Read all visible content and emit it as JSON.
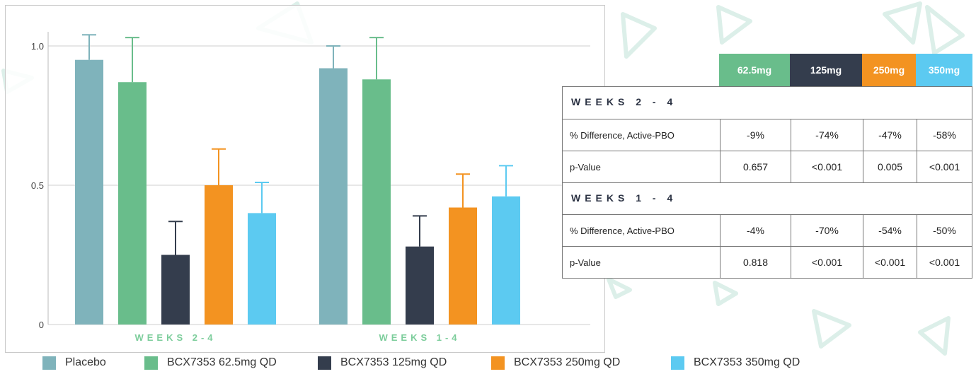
{
  "colors": {
    "placebo": "#7fb3bb",
    "dose_62_5": "#69bd8b",
    "dose_125": "#343d4d",
    "dose_250": "#f39321",
    "dose_350": "#5ccaf1",
    "grid": "#cfcfcf",
    "group_label": "#7ccd9b"
  },
  "chart_data": {
    "type": "bar",
    "categories": [
      "WEEKS 2-4",
      "WEEKS 1-4"
    ],
    "series": [
      {
        "name": "Placebo",
        "values": [
          0.95,
          0.92
        ],
        "error_upper": [
          1.04,
          1.0
        ]
      },
      {
        "name": "BCX7353 62.5mg QD",
        "values": [
          0.87,
          0.88
        ],
        "error_upper": [
          1.03,
          1.03
        ]
      },
      {
        "name": "BCX7353 125mg QD",
        "values": [
          0.25,
          0.28
        ],
        "error_upper": [
          0.37,
          0.39
        ]
      },
      {
        "name": "BCX7353 250mg QD",
        "values": [
          0.5,
          0.42
        ],
        "error_upper": [
          0.63,
          0.54
        ]
      },
      {
        "name": "BCX7353 350mg QD",
        "values": [
          0.4,
          0.46
        ],
        "error_upper": [
          0.51,
          0.57
        ]
      }
    ],
    "yticks": [
      "0",
      "0.5",
      "1.0"
    ],
    "ylim": [
      0,
      1.1
    ],
    "grid": true,
    "legend_position": "bottom"
  },
  "stats_table": {
    "dose_headers": [
      "62.5mg",
      "125mg",
      "250mg",
      "350mg"
    ],
    "sections": [
      {
        "label": "WEEKS 2-4",
        "rows": [
          {
            "label": "% Difference, Active-PBO",
            "values": [
              "-9%",
              "-74%",
              "-47%",
              "-58%"
            ]
          },
          {
            "label": "p-Value",
            "values": [
              "0.657",
              "<0.001",
              "0.005",
              "<0.001"
            ]
          }
        ]
      },
      {
        "label": "WEEKS 1-4",
        "rows": [
          {
            "label": "% Difference, Active-PBO",
            "values": [
              "-4%",
              "-70%",
              "-54%",
              "-50%"
            ]
          },
          {
            "label": "p-Value",
            "values": [
              "0.818",
              "<0.001",
              "<0.001",
              "<0.001"
            ]
          }
        ]
      }
    ]
  }
}
